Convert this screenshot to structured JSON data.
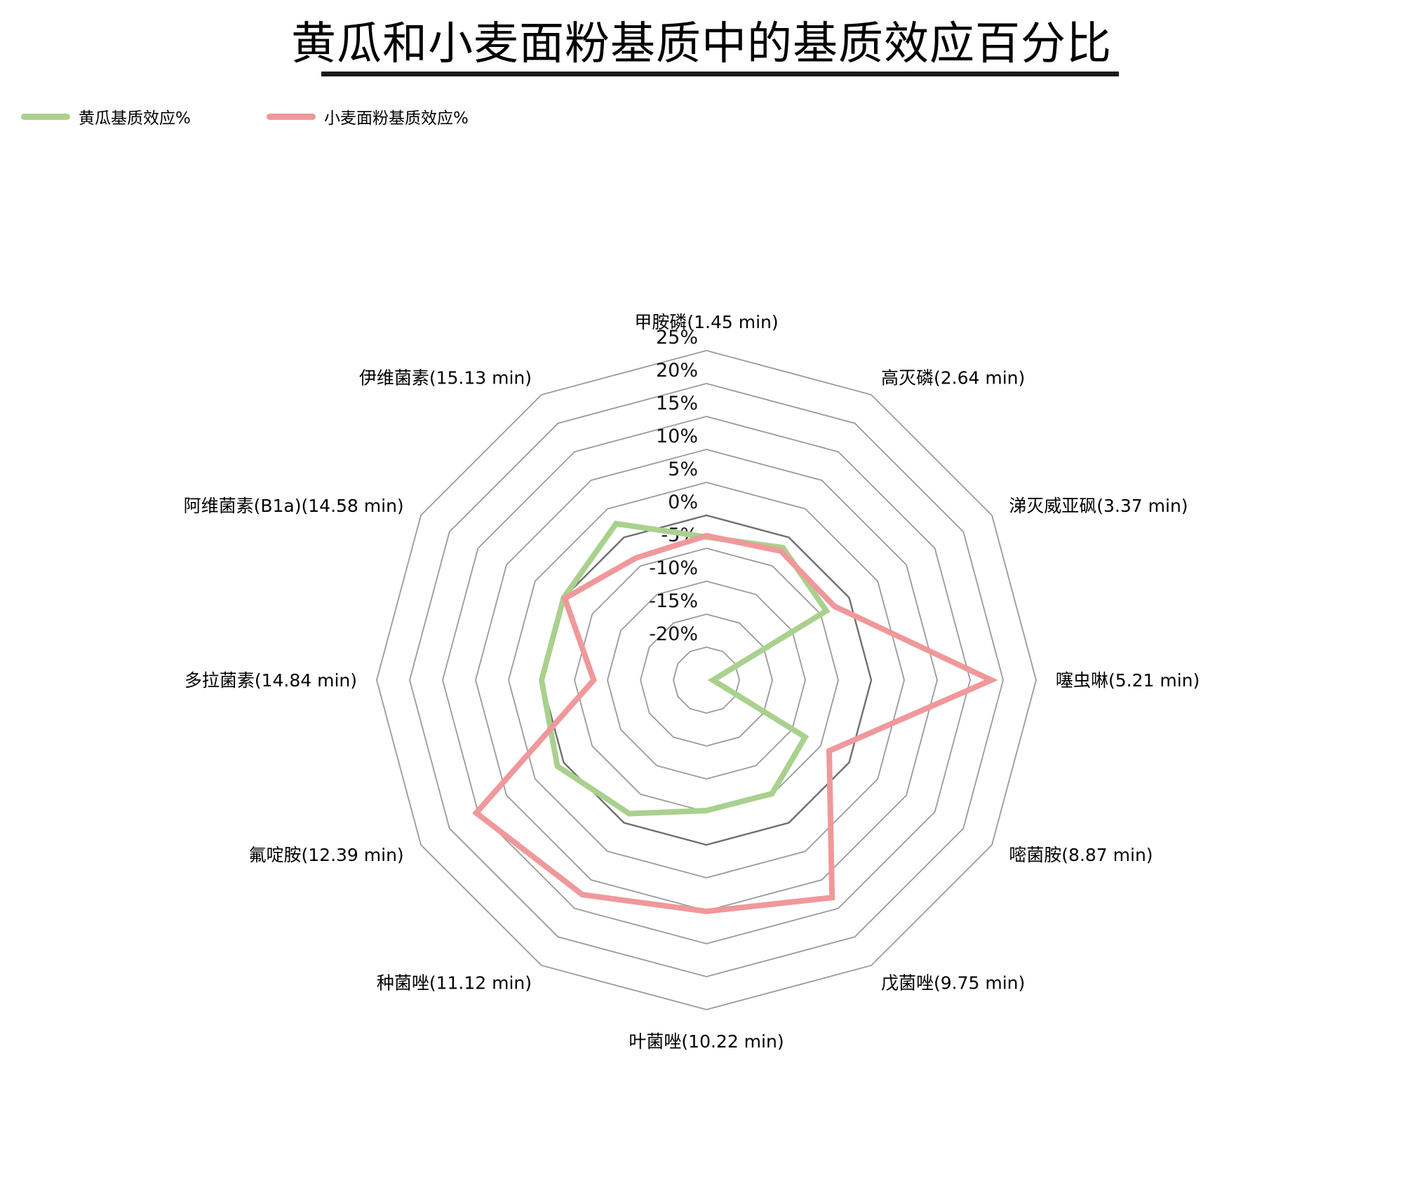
{
  "title": "黄瓜和小麦面粉基质中的基质效应百分比",
  "legend": [
    {
      "label": "黄瓜基质效应%",
      "color": "#a9d18e"
    },
    {
      "label": "小麦面粉基质效应%",
      "color": "#f0989a"
    }
  ],
  "chart_data": {
    "type": "radar",
    "title": "黄瓜和小麦面粉基质中的基质效应百分比",
    "categories": [
      "甲胺磷(1.45 min)",
      "高灭磷(2.64 min)",
      "涕灭威亚砜(3.37 min)",
      "噻虫啉(5.21 min)",
      "嘧菌胺(8.87 min)",
      "戊菌唑(9.75 min)",
      "叶菌唑(10.22 min)",
      "种菌唑(11.12 min)",
      "氟啶胺(12.39 min)",
      "多拉菌素(14.84 min)",
      "阿维菌素(B1a)(14.58 min)",
      "伊维菌素(15.13 min)"
    ],
    "rlim": [
      -25,
      25
    ],
    "ticks": [
      -20,
      -15,
      -10,
      -5,
      0,
      5,
      10,
      15,
      20,
      25
    ],
    "tick_labels": [
      "-20%",
      "-15%",
      "-10%",
      "-5%",
      "0%",
      "5%",
      "10%",
      "15%",
      "20%",
      "25%"
    ],
    "grid": true,
    "legend_position": "top-left",
    "series": [
      {
        "name": "黄瓜基质效应%",
        "color": "#a9d18e",
        "values": [
          -3.3,
          -1.8,
          -4.0,
          -24.0,
          -7.7,
          -5.1,
          -5.2,
          -1.6,
          1.1,
          0.0,
          0.0,
          2.4
        ]
      },
      {
        "name": "小麦面粉基质效应%",
        "color": "#f0989a",
        "values": [
          -3.1,
          -2.4,
          -2.6,
          18.2,
          -3.5,
          13.1,
          10.1,
          12.6,
          15.3,
          -7.9,
          -0.2,
          -3.6
        ]
      }
    ]
  }
}
